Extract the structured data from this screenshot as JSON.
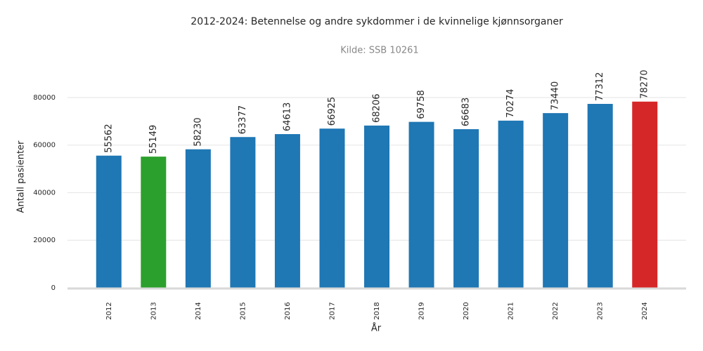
{
  "chart_data": {
    "type": "bar",
    "title": "2012-2024: Betennelse og andre sykdommer i de kvinnelige kjønnsorganer",
    "subtitle": "Kilde: SSB 10261",
    "x_label": "År",
    "y_label": "Antall pasienter",
    "categories": [
      "2012",
      "2013",
      "2014",
      "2015",
      "2016",
      "2017",
      "2018",
      "2019",
      "2020",
      "2021",
      "2022",
      "2023",
      "2024"
    ],
    "values": [
      55562,
      55149,
      58230,
      63377,
      64613,
      66925,
      68206,
      69758,
      66683,
      70274,
      73440,
      77312,
      78270
    ],
    "colors": [
      "#1f77b4",
      "#2ca02c",
      "#1f77b4",
      "#1f77b4",
      "#1f77b4",
      "#1f77b4",
      "#1f77b4",
      "#1f77b4",
      "#1f77b4",
      "#1f77b4",
      "#1f77b4",
      "#1f77b4",
      "#d62728"
    ],
    "ylim": [
      0,
      90000
    ],
    "yticks": [
      0,
      20000,
      40000,
      60000,
      80000
    ],
    "grid": true
  }
}
